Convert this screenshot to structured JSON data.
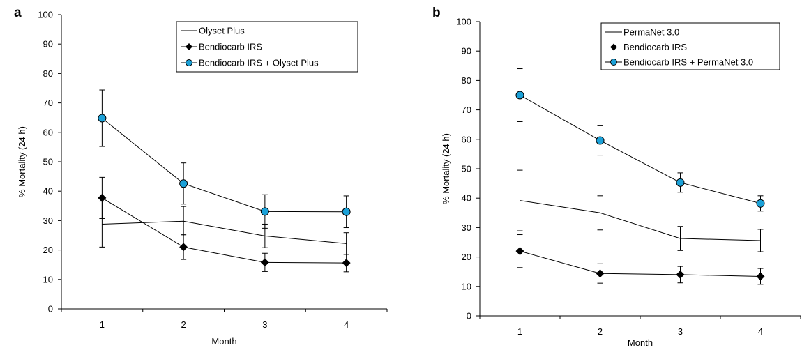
{
  "chart_data": [
    {
      "panel": "a",
      "type": "line",
      "categories": [
        "1",
        "2",
        "3",
        "4"
      ],
      "xlabel": "Month",
      "ylabel": "% Mortality (24 h)",
      "ylim": [
        0,
        100
      ],
      "yticks": [
        "0",
        "10",
        "20",
        "30",
        "40",
        "50",
        "60",
        "70",
        "80",
        "90",
        "100"
      ],
      "grid": false,
      "legend": "top-right",
      "series": [
        {
          "name": "Olyset Plus",
          "marker": "none",
          "color": "#000000",
          "values": [
            28.8,
            29.8,
            24.8,
            22.2
          ],
          "err": [
            7.8,
            5.0,
            4.0,
            3.7
          ]
        },
        {
          "name": "Bendiocarb IRS",
          "marker": "diamond",
          "color": "#000000",
          "values": [
            37.7,
            21.0,
            15.8,
            15.6
          ],
          "err": [
            7.0,
            4.2,
            3.1,
            3.0
          ]
        },
        {
          "name": "Bendiocarb IRS + Olyset Plus",
          "marker": "circle",
          "color": "#1ba1d8",
          "values": [
            64.8,
            42.6,
            33.1,
            33.0
          ],
          "err": [
            9.6,
            7.0,
            5.7,
            5.4
          ]
        }
      ]
    },
    {
      "panel": "b",
      "type": "line",
      "categories": [
        "1",
        "2",
        "3",
        "4"
      ],
      "xlabel": "Month",
      "ylabel": "% Mortality (24 h)",
      "ylim": [
        0,
        100
      ],
      "yticks": [
        "0",
        "10",
        "20",
        "30",
        "40",
        "50",
        "60",
        "70",
        "80",
        "90",
        "100"
      ],
      "grid": false,
      "legend": "top-right",
      "series": [
        {
          "name": "PermaNet 3.0",
          "marker": "none",
          "color": "#000000",
          "values": [
            39.2,
            35.0,
            26.3,
            25.6
          ],
          "err": [
            10.3,
            5.8,
            4.1,
            3.8
          ]
        },
        {
          "name": "Bendiocarb IRS",
          "marker": "diamond",
          "color": "#000000",
          "values": [
            22.0,
            14.4,
            14.0,
            13.4
          ],
          "err": [
            5.6,
            3.3,
            2.8,
            2.7
          ]
        },
        {
          "name": "Bendiocarb IRS + PermaNet 3.0",
          "marker": "circle",
          "color": "#1ba1d8",
          "values": [
            75.0,
            59.6,
            45.3,
            38.2
          ],
          "err": [
            9.0,
            5.0,
            3.3,
            2.6
          ]
        }
      ]
    }
  ]
}
